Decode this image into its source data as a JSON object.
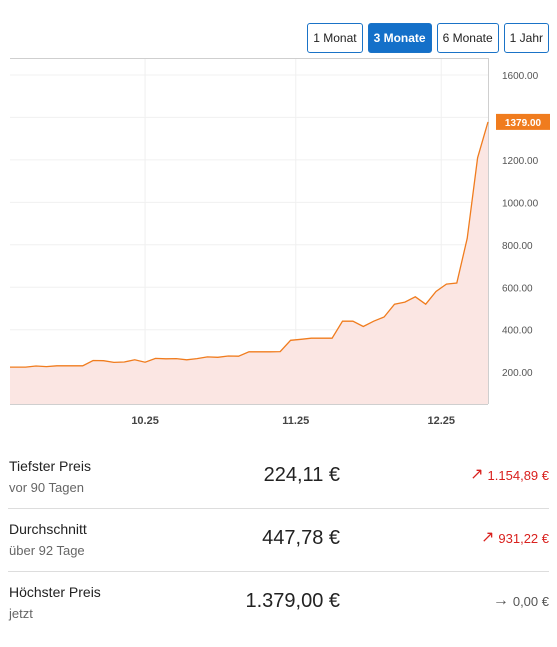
{
  "range_buttons": [
    {
      "label": "1 Monat",
      "active": false
    },
    {
      "label": "3 Monate",
      "active": true
    },
    {
      "label": "6 Monate",
      "active": false
    },
    {
      "label": "1 Jahr",
      "active": false
    }
  ],
  "chart_data": {
    "type": "area",
    "x_tick_labels": [
      "10.25",
      "11.25",
      "12.25"
    ],
    "y_ticks": [
      200,
      400,
      600,
      800,
      1000,
      1200,
      1400,
      1600
    ],
    "y_tick_labels": [
      "200.00",
      "400.00",
      "600.00",
      "800.00",
      "1000.00",
      "1200.00",
      "1400.00",
      "1600.00"
    ],
    "ylim": [
      50,
      1680
    ],
    "current_value_label": "1379.00",
    "grid": true,
    "colors": {
      "line": "#f07c1e",
      "fill": "#fbe6e3",
      "badge": "#f07c1e"
    },
    "series": [
      {
        "x": [
          0,
          3,
          5,
          7,
          9,
          12,
          14,
          16,
          18,
          20,
          22,
          24,
          26,
          28,
          30,
          32,
          34,
          36,
          38,
          40,
          42,
          44,
          46,
          48,
          50,
          52,
          54,
          56,
          58,
          60,
          62,
          64,
          66,
          68,
          70,
          72,
          74,
          76,
          78,
          80,
          82,
          84,
          86,
          88,
          90,
          92
        ],
        "y": [
          224,
          224,
          229,
          226,
          230,
          230,
          230,
          255,
          254,
          246,
          248,
          258,
          247,
          265,
          263,
          264,
          258,
          264,
          272,
          270,
          276,
          275,
          296,
          296,
          296,
          297,
          350,
          355,
          360,
          360,
          360,
          440,
          440,
          415,
          440,
          460,
          520,
          530,
          555,
          520,
          580,
          615,
          620,
          830,
          1210,
          1379
        ]
      }
    ]
  },
  "stats": [
    {
      "label": "Tiefster Preis",
      "sub": "vor 90 Tagen",
      "value": "224,11 €",
      "change": "1.154,89 €",
      "direction": "up",
      "icon": "arrow-up-right-icon"
    },
    {
      "label": "Durchschnitt",
      "sub": "über 92 Tage",
      "value": "447,78 €",
      "change": "931,22 €",
      "direction": "up",
      "icon": "arrow-up-right-icon"
    },
    {
      "label": "Höchster Preis",
      "sub": "jetzt",
      "value": "1.379,00 €",
      "change": "0,00 €",
      "direction": "flat",
      "icon": "arrow-right-icon"
    }
  ]
}
